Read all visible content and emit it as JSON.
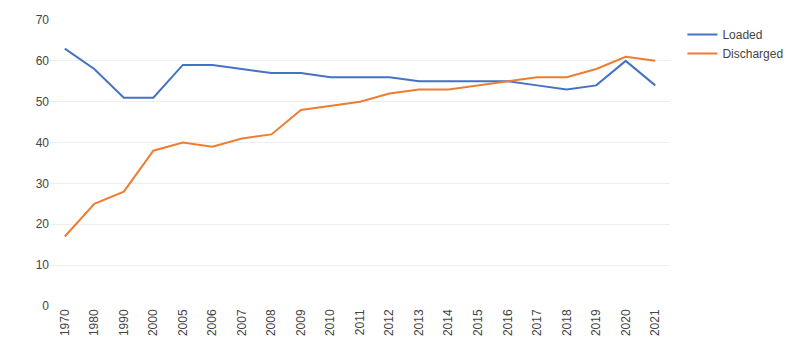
{
  "chart_data": {
    "type": "line",
    "categories": [
      "1970",
      "1980",
      "1990",
      "2000",
      "2005",
      "2006",
      "2007",
      "2008",
      "2009",
      "2010",
      "2011",
      "2012",
      "2013",
      "2014",
      "2015",
      "2016",
      "2017",
      "2018",
      "2019",
      "2020",
      "2021"
    ],
    "series": [
      {
        "name": "Loaded",
        "color": "#4472C4",
        "values": [
          63,
          58,
          51,
          51,
          59,
          59,
          58,
          57,
          57,
          56,
          56,
          56,
          55,
          55,
          55,
          55,
          54,
          53,
          54,
          60,
          54
        ]
      },
      {
        "name": "Discharged",
        "color": "#ED7D31",
        "values": [
          17,
          25,
          28,
          38,
          40,
          39,
          41,
          42,
          48,
          49,
          50,
          52,
          53,
          53,
          54,
          55,
          56,
          56,
          58,
          61,
          60
        ]
      }
    ],
    "ylim": [
      0,
      70
    ],
    "yticks": [
      0,
      10,
      20,
      30,
      40,
      50,
      60,
      70
    ],
    "grid": true,
    "legend": "right"
  }
}
